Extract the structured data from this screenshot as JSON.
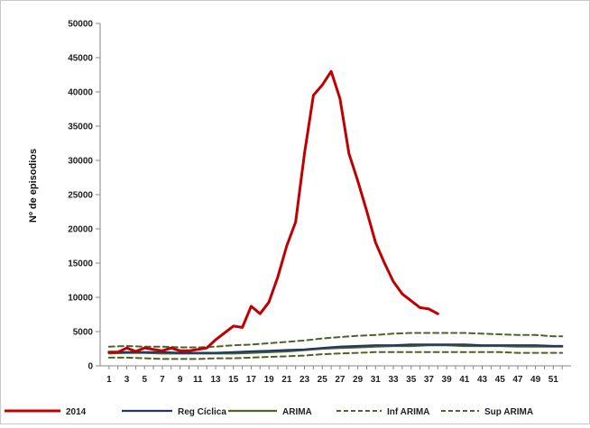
{
  "chart_data": {
    "type": "line",
    "ylabel": "Nº de episodios",
    "xlabel": "",
    "ylim": [
      0,
      50000
    ],
    "xlim": [
      0,
      53
    ],
    "y_ticks": [
      "0",
      "5000",
      "10000",
      "15000",
      "20000",
      "25000",
      "30000",
      "35000",
      "40000",
      "45000",
      "50000"
    ],
    "x_ticks": [
      "1",
      "3",
      "5",
      "7",
      "9",
      "11",
      "13",
      "15",
      "17",
      "19",
      "21",
      "23",
      "25",
      "27",
      "29",
      "31",
      "33",
      "35",
      "37",
      "39",
      "41",
      "43",
      "45",
      "47",
      "49",
      "51"
    ],
    "grid": false,
    "legend_position": "bottom",
    "series": [
      {
        "name": "2014",
        "color": "#c00000",
        "style": "solid-thick",
        "x": [
          1,
          2,
          3,
          4,
          5,
          6,
          7,
          8,
          9,
          10,
          11,
          12,
          13,
          14,
          15,
          16,
          17,
          18,
          19,
          20,
          21,
          22,
          23,
          24,
          25,
          26,
          27,
          28,
          29,
          30,
          31,
          32,
          33,
          34,
          35,
          36,
          37,
          38
        ],
        "values": [
          2000,
          2000,
          2600,
          2100,
          2600,
          2400,
          2200,
          2600,
          2200,
          2200,
          2400,
          2600,
          3800,
          4800,
          5800,
          5600,
          8700,
          7600,
          9300,
          13000,
          17500,
          21000,
          31000,
          39500,
          41000,
          43000,
          39000,
          31000,
          27000,
          22600,
          18000,
          15000,
          12300,
          10500,
          9500,
          8500,
          8300,
          7600
        ]
      },
      {
        "name": "Reg Cíclica",
        "color": "#1f3864",
        "style": "solid",
        "x": [
          1,
          3,
          5,
          7,
          9,
          11,
          13,
          15,
          17,
          19,
          21,
          23,
          25,
          27,
          29,
          31,
          33,
          35,
          37,
          39,
          41,
          43,
          45,
          47,
          49,
          51,
          52
        ],
        "values": [
          2000,
          2000,
          2000,
          2000,
          1900,
          1900,
          1900,
          2000,
          2100,
          2200,
          2300,
          2400,
          2600,
          2800,
          2900,
          3000,
          3000,
          3100,
          3100,
          3100,
          3100,
          3000,
          3000,
          3000,
          3000,
          2900,
          2900
        ]
      },
      {
        "name": "ARIMA",
        "color": "#4f6228",
        "style": "solid",
        "x": [
          1,
          3,
          5,
          7,
          9,
          11,
          13,
          15,
          17,
          19,
          21,
          23,
          25,
          27,
          29,
          31,
          33,
          35,
          37,
          39,
          41,
          43,
          45,
          47,
          49,
          51,
          52
        ],
        "values": [
          1800,
          1900,
          1900,
          1800,
          1800,
          1800,
          1800,
          1800,
          1900,
          2000,
          2100,
          2300,
          2500,
          2600,
          2700,
          2800,
          2900,
          2900,
          3000,
          3000,
          2900,
          2900,
          2900,
          2800,
          2800,
          2800,
          2800
        ]
      },
      {
        "name": "Inf ARIMA",
        "color": "#4f6228",
        "style": "dashed",
        "x": [
          1,
          3,
          5,
          7,
          9,
          11,
          13,
          15,
          17,
          19,
          21,
          23,
          25,
          27,
          29,
          31,
          33,
          35,
          37,
          39,
          41,
          43,
          45,
          47,
          49,
          51,
          52
        ],
        "values": [
          1200,
          1200,
          1100,
          1000,
          1000,
          1000,
          1100,
          1100,
          1200,
          1300,
          1400,
          1500,
          1700,
          1800,
          1900,
          2000,
          2000,
          2000,
          2000,
          2000,
          2000,
          2000,
          2000,
          1900,
          1900,
          1900,
          1900
        ]
      },
      {
        "name": "Sup ARIMA",
        "color": "#4f6228",
        "style": "dashed",
        "x": [
          1,
          3,
          5,
          7,
          9,
          11,
          13,
          15,
          17,
          19,
          21,
          23,
          25,
          27,
          29,
          31,
          33,
          35,
          37,
          39,
          41,
          43,
          45,
          47,
          49,
          51,
          52
        ],
        "values": [
          2800,
          2900,
          2800,
          2800,
          2700,
          2700,
          2800,
          3000,
          3100,
          3300,
          3500,
          3700,
          4000,
          4200,
          4400,
          4500,
          4700,
          4800,
          4800,
          4800,
          4800,
          4700,
          4600,
          4500,
          4500,
          4300,
          4300
        ]
      }
    ]
  }
}
